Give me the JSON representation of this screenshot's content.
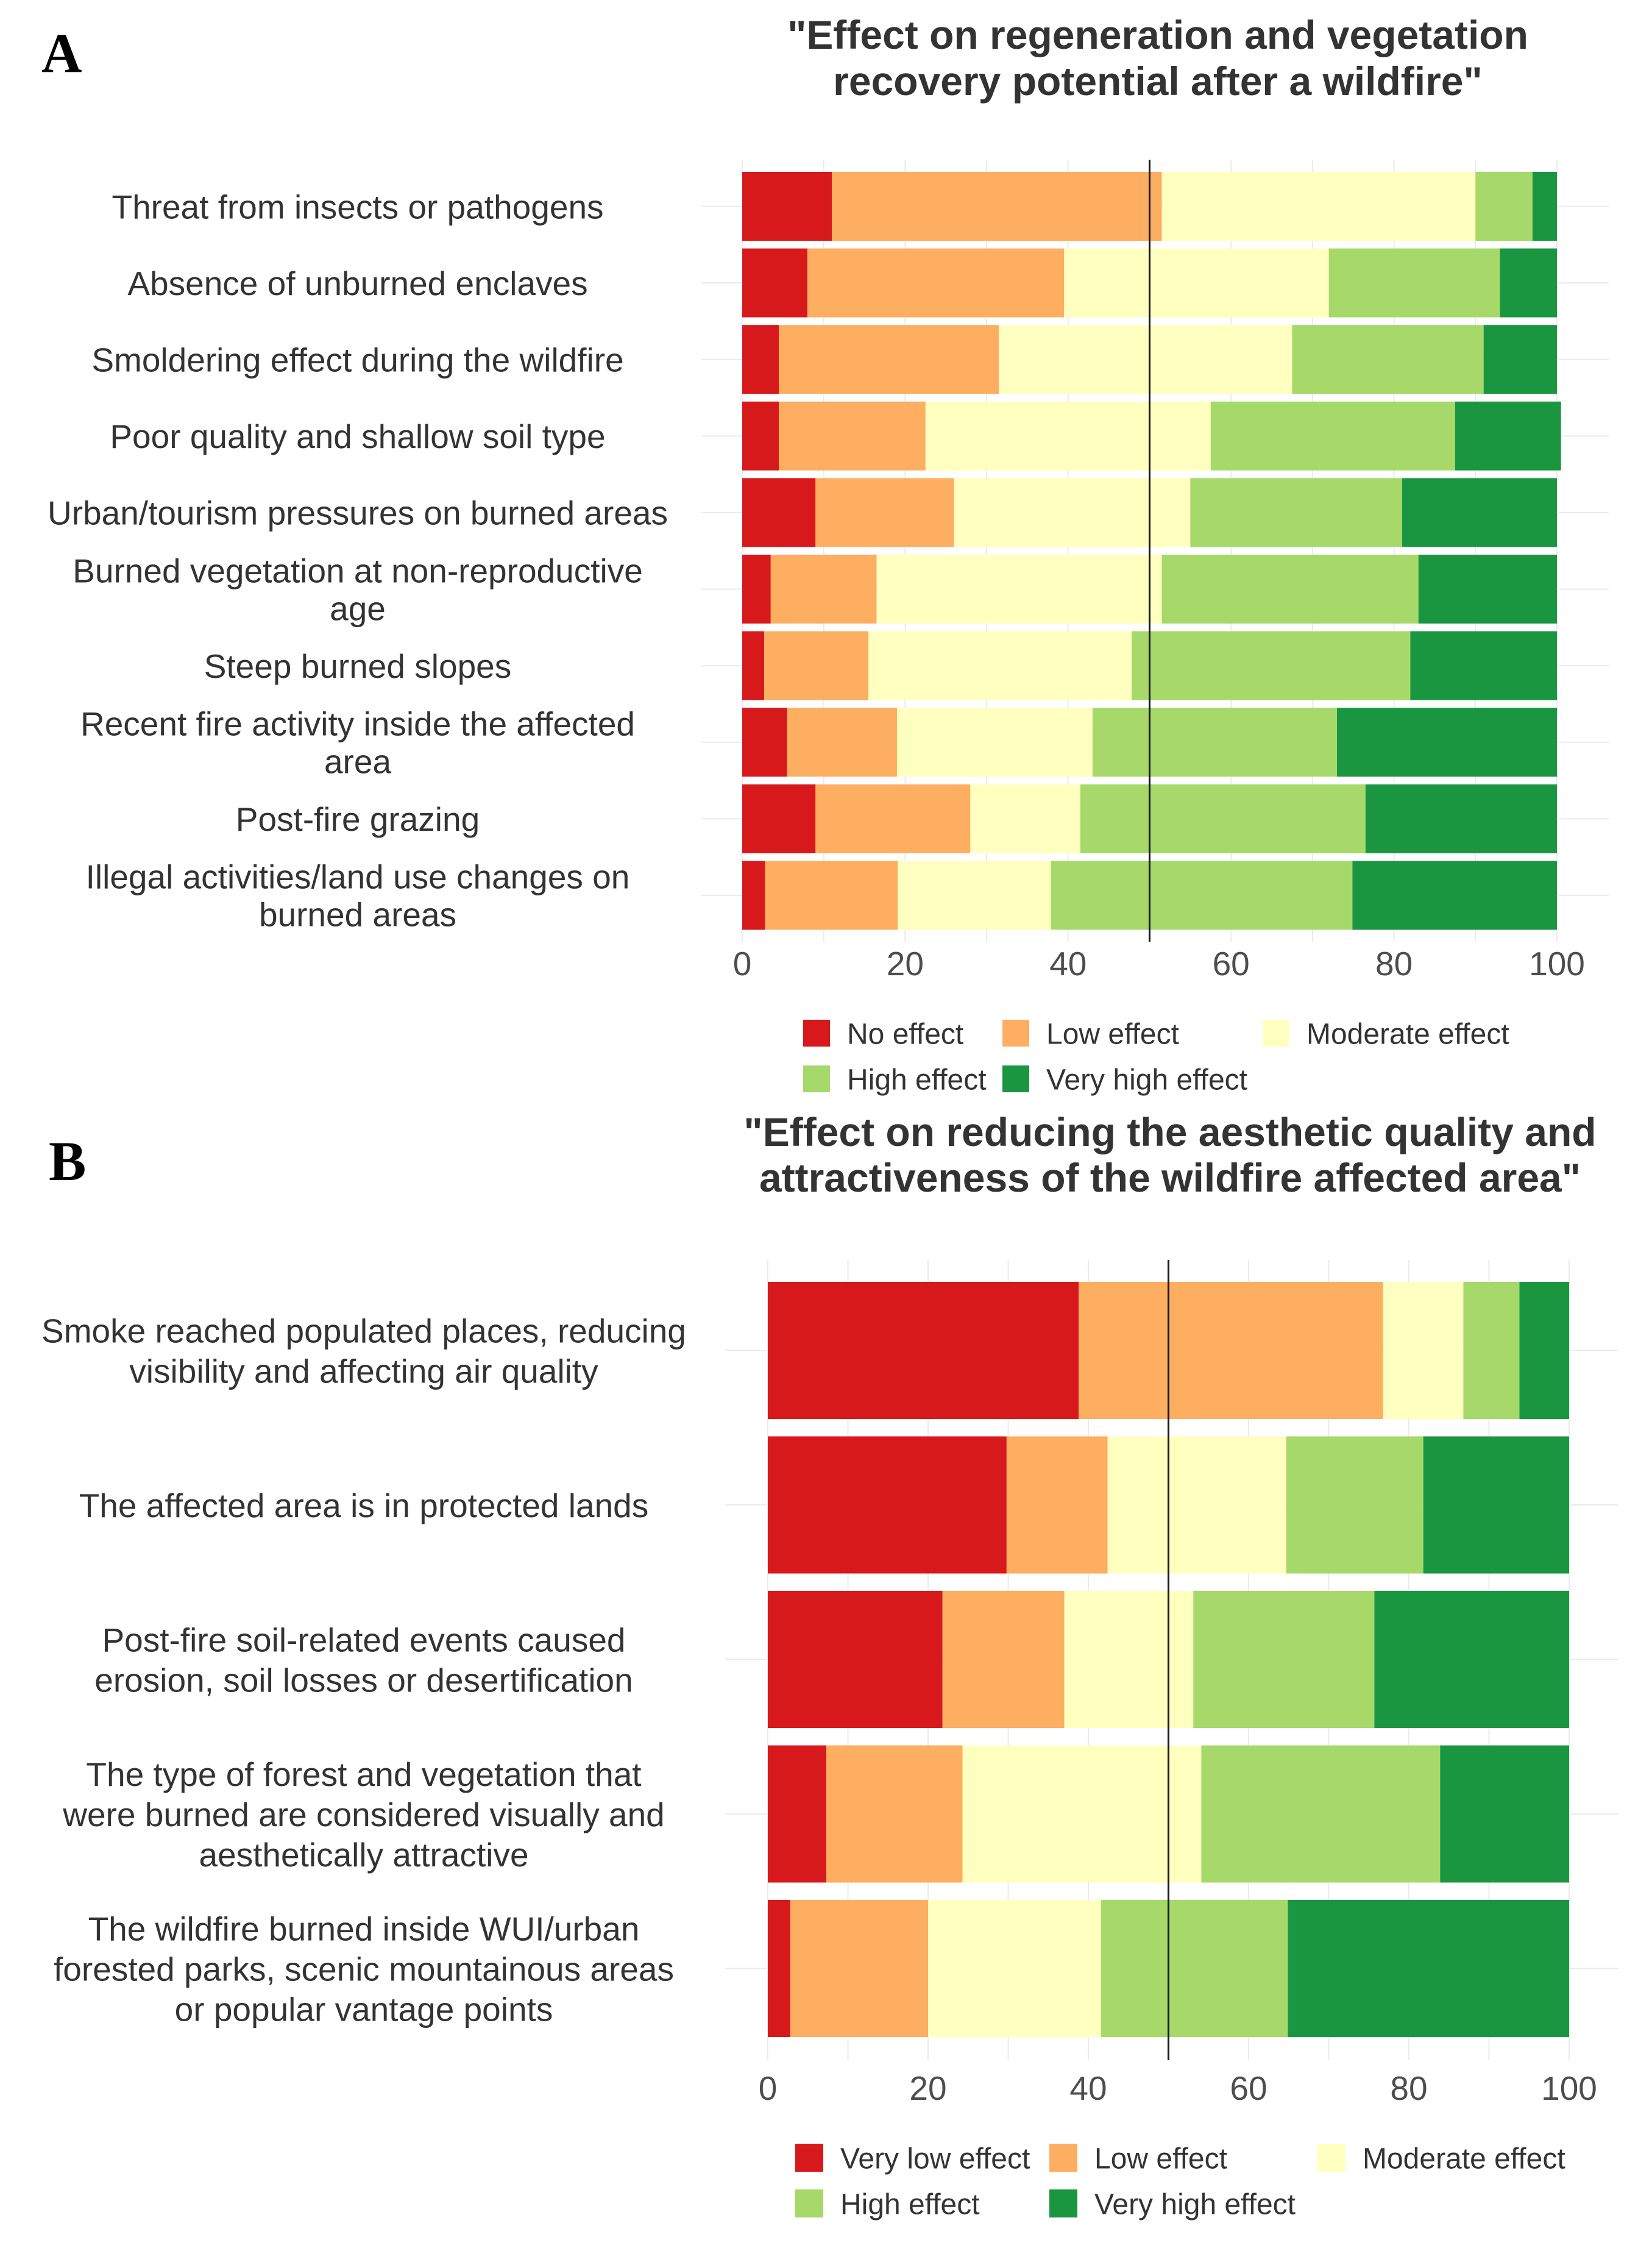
{
  "colors": {
    "no_effect": "#d7191c",
    "low": "#fdae61",
    "moderate": "#ffffbf",
    "high": "#a6d96a",
    "very_high": "#1a9641"
  },
  "chart_data": [
    {
      "panel": "A",
      "type": "bar",
      "orientation": "horizontal",
      "stacked": true,
      "title": [
        "\"Effect on regeneration and vegetation",
        "recovery potential after a wildfire\""
      ],
      "xlim": [
        0,
        100
      ],
      "x_ticks": [
        "0",
        "20",
        "40",
        "60",
        "80",
        "100"
      ],
      "reference_line": 50,
      "categories": [
        [
          "Threat from insects or pathogens"
        ],
        [
          "Absence of unburned enclaves"
        ],
        [
          "Smoldering effect during the wildfire"
        ],
        [
          "Poor quality and shallow soil type"
        ],
        [
          "Urban/tourism pressures on burned areas"
        ],
        [
          "Burned vegetation at non-reproductive",
          "age"
        ],
        [
          "Steep burned slopes"
        ],
        [
          "Recent fire activity inside the affected",
          "area"
        ],
        [
          "Post-fire grazing"
        ],
        [
          "Illegal activities/land use changes on",
          "burned areas"
        ]
      ],
      "series": [
        {
          "name": "No effect",
          "color_key": "no_effect",
          "values": [
            11,
            8,
            4.5,
            4.5,
            9,
            3.5,
            2.7,
            5.5,
            9,
            2.8
          ]
        },
        {
          "name": "Low effect",
          "color_key": "low",
          "values": [
            40.5,
            31.5,
            27,
            18,
            17,
            13,
            12.8,
            13.5,
            19,
            16.3
          ]
        },
        {
          "name": "Moderate effect",
          "color_key": "moderate",
          "values": [
            38.5,
            32.5,
            36,
            35,
            29,
            35,
            32.3,
            24,
            13.5,
            18.8
          ]
        },
        {
          "name": "High effect",
          "color_key": "high",
          "values": [
            7,
            21,
            23.5,
            30,
            26,
            31.5,
            34.2,
            30,
            35,
            37
          ]
        },
        {
          "name": "Very high effect",
          "color_key": "very_high",
          "values": [
            3,
            7,
            9,
            13,
            19,
            17,
            18,
            27,
            23.5,
            25.1
          ]
        }
      ],
      "legend": [
        [
          "No effect",
          "Low effect",
          "Moderate effect"
        ],
        [
          "High effect",
          "Very high effect"
        ]
      ]
    },
    {
      "panel": "B",
      "type": "bar",
      "orientation": "horizontal",
      "stacked": true,
      "title": [
        "\"Effect on reducing the aesthetic quality and",
        "attractiveness of the wildfire affected area\""
      ],
      "xlim": [
        0,
        100
      ],
      "x_ticks": [
        "0",
        "20",
        "40",
        "60",
        "80",
        "100"
      ],
      "reference_line": 50,
      "categories": [
        [
          "Smoke reached populated places, reducing",
          "visibility and affecting air quality"
        ],
        [
          "The affected area is in protected lands"
        ],
        [
          "Post-fire soil-related events caused",
          "erosion, soil losses or desertification"
        ],
        [
          "The type of forest and vegetation that",
          "were burned are considered visually and",
          "aesthetically attractive"
        ],
        [
          "The wildfire burned inside WUI/urban",
          "forested parks, scenic mountainous areas",
          "or popular vantage points"
        ]
      ],
      "series": [
        {
          "name": "Very low effect",
          "color_key": "no_effect",
          "values": [
            38.8,
            29.8,
            21.8,
            7.3,
            2.8
          ]
        },
        {
          "name": "Low effect",
          "color_key": "low",
          "values": [
            38,
            12.6,
            15.2,
            17,
            17.2
          ]
        },
        {
          "name": "Moderate effect",
          "color_key": "moderate",
          "values": [
            10,
            22.3,
            16.1,
            29.8,
            21.6
          ]
        },
        {
          "name": "High effect",
          "color_key": "high",
          "values": [
            7,
            17.1,
            22.6,
            29.8,
            23.3
          ]
        },
        {
          "name": "Very high effect",
          "color_key": "very_high",
          "values": [
            6.2,
            18.2,
            24.3,
            16.1,
            35.1
          ]
        }
      ],
      "legend": [
        [
          "Very low effect",
          "Low effect",
          "Moderate effect"
        ],
        [
          "High effect",
          "Very high effect"
        ]
      ]
    }
  ]
}
